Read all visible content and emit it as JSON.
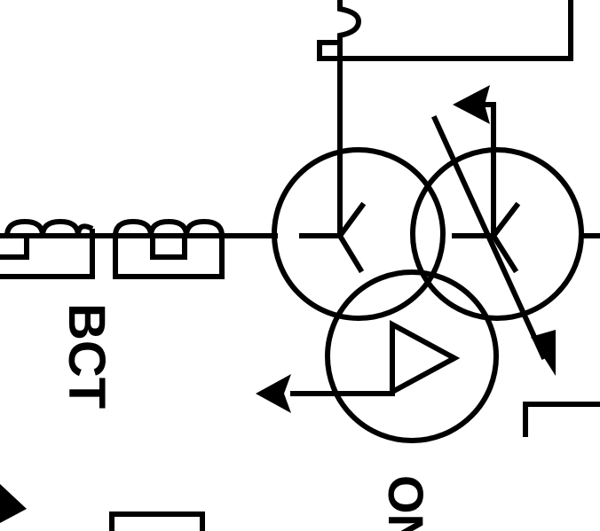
{
  "diagram": {
    "ct_label": "BCT",
    "partial_label": "ON",
    "colors": {
      "line": "#000000",
      "background": "#ffffff"
    },
    "symbols": [
      "three-winding-transformer",
      "bushing-current-transformer",
      "tap-changer-arrow",
      "ground-arrow"
    ]
  }
}
